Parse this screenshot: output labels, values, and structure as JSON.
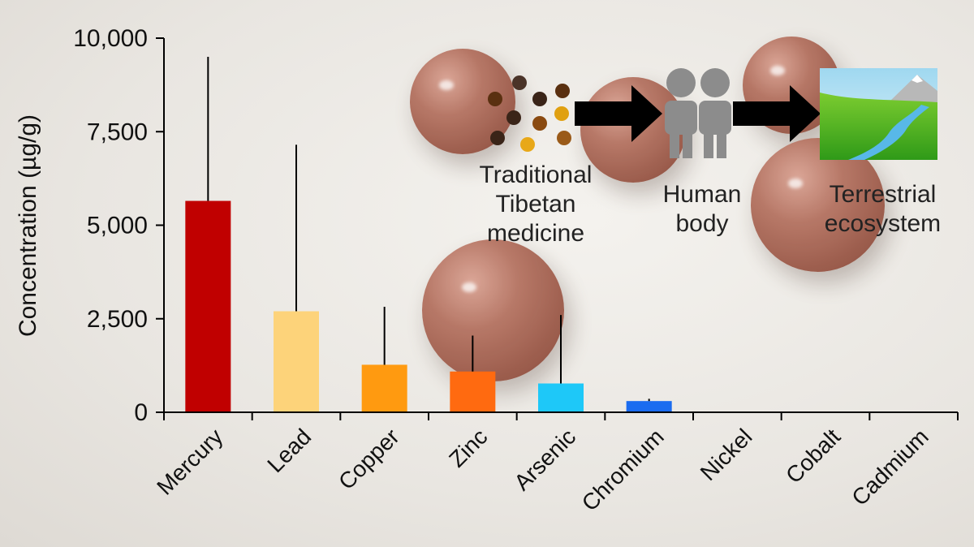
{
  "chart_data": {
    "type": "bar",
    "ylabel": "Concentration (µg/g)",
    "ylim": [
      0,
      10000
    ],
    "yticks": [
      0,
      2500,
      5000,
      7500,
      10000
    ],
    "ytick_labels": [
      "0",
      "2,500",
      "5,000",
      "7,500",
      "10,000"
    ],
    "categories": [
      "Mercury",
      "Lead",
      "Copper",
      "Zinc",
      "Arsenic",
      "Chromium",
      "Nickel",
      "Cobalt",
      "Cadmium"
    ],
    "values": [
      5650,
      2700,
      1270,
      1090,
      770,
      300,
      10,
      5,
      3
    ],
    "error_upper": [
      9500,
      7150,
      2820,
      2050,
      2600,
      360,
      0,
      0,
      0
    ],
    "colors": [
      "#c00000",
      "#fdd37a",
      "#ff9a10",
      "#ff6a10",
      "#1ec8f8",
      "#1a6cf0",
      "#777777",
      "#777777",
      "#777777"
    ]
  },
  "flow": {
    "step1": [
      "Traditional",
      "Tibetan",
      "medicine"
    ],
    "step2": [
      "Human",
      "body"
    ],
    "step3": [
      "Terrestrial",
      "ecosystem"
    ]
  },
  "icons": {
    "medicine": "medicine-granules-icon",
    "human": "people-icon",
    "ecosystem": "landscape-icon",
    "arrow": "arrow-right-icon"
  }
}
